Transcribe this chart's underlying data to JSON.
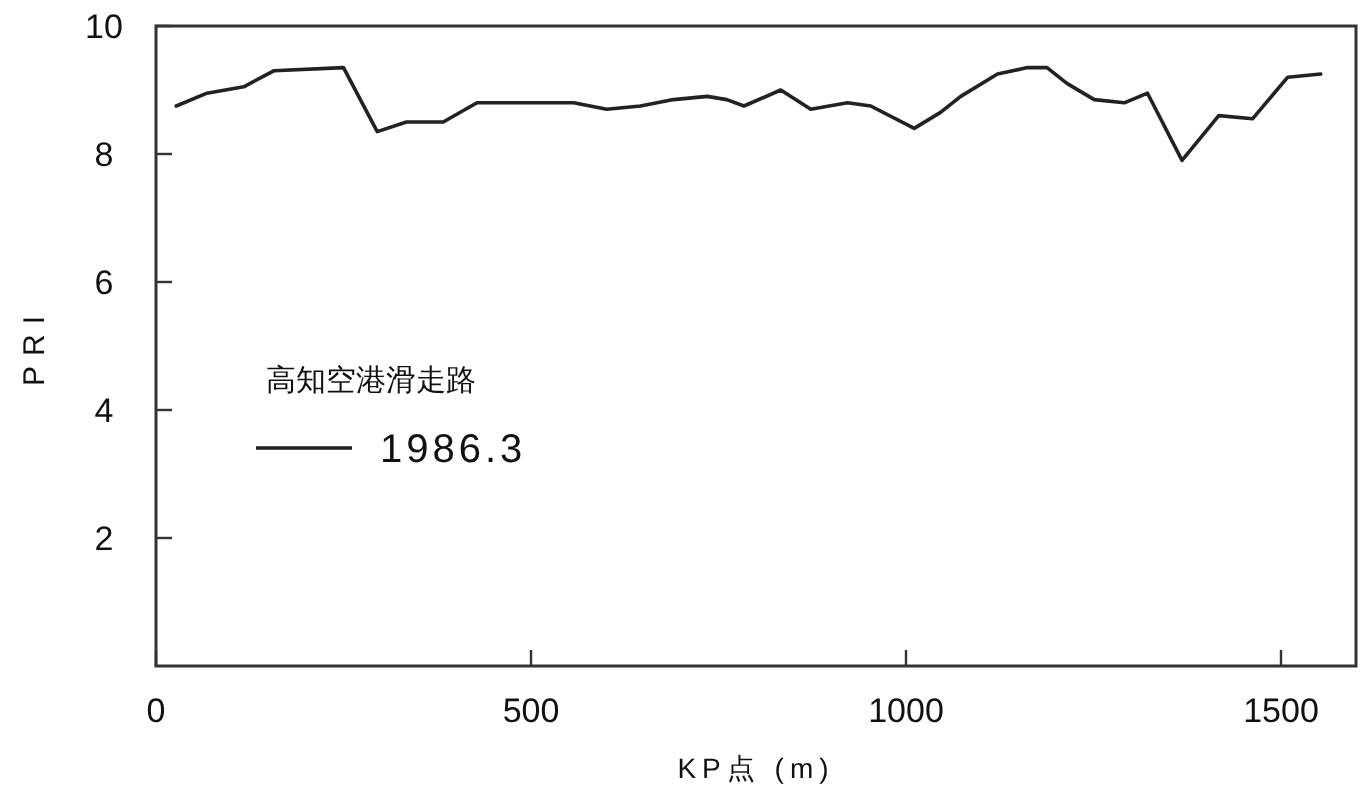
{
  "chart_data": {
    "type": "line",
    "xlabel": "KP点 (m)",
    "ylabel": "PRI",
    "legend_title": "高知空港滑走路",
    "legend": "left",
    "xlim": [
      0,
      1600
    ],
    "xticks": [
      0,
      500,
      1000,
      1500
    ],
    "ylim": [
      0,
      10
    ],
    "yticks": [
      2,
      4,
      6,
      8,
      10
    ],
    "grid": false,
    "series": [
      {
        "name": "1986.3",
        "color": "#222222",
        "x": [
          27,
          68,
          117,
          157,
          250,
          295,
          334,
          383,
          428,
          512,
          557,
          601,
          646,
          690,
          735,
          761,
          784,
          833,
          873,
          922,
          953,
          1011,
          1046,
          1073,
          1122,
          1162,
          1188,
          1215,
          1251,
          1291,
          1322,
          1368,
          1417,
          1462,
          1509,
          1553
        ],
        "values": [
          8.75,
          8.95,
          9.05,
          9.3,
          9.35,
          8.35,
          8.5,
          8.5,
          8.8,
          8.8,
          8.8,
          8.7,
          8.75,
          8.85,
          8.9,
          8.85,
          8.75,
          9.0,
          8.7,
          8.8,
          8.75,
          8.4,
          8.65,
          8.9,
          9.25,
          9.35,
          9.35,
          9.1,
          8.85,
          8.8,
          8.95,
          7.9,
          8.6,
          8.55,
          9.2,
          9.25
        ]
      }
    ]
  }
}
